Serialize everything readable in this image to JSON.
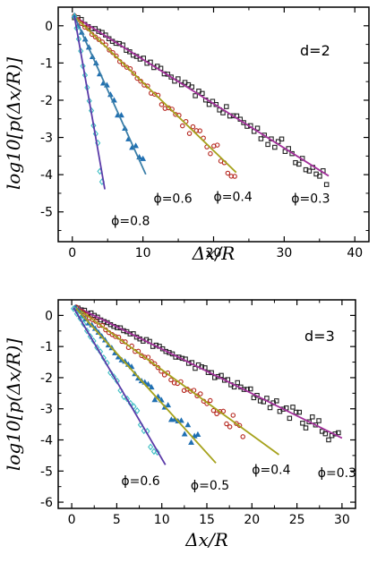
{
  "colors": {
    "black": "#222222",
    "red": "#b5261e",
    "blue": "#1f6fb2",
    "cyan": "#3fbfc4",
    "magenta": "#a2309b",
    "olive": "#a6a21c",
    "steel": "#3a7ea8",
    "purple": "#5a3aa8"
  },
  "chart_data": [
    {
      "type": "scatter",
      "panel_label": "d=2",
      "xlabel": "Δx/R",
      "ylabel": "log10[p(Δx/R)]",
      "xlim": [
        -2,
        42
      ],
      "ylim": [
        -5.8,
        0.5
      ],
      "xticks": [
        0,
        10,
        20,
        30,
        40
      ],
      "yticks": [
        0,
        -1,
        -2,
        -3,
        -4,
        -5
      ],
      "series": [
        {
          "name": "ϕ=0.3",
          "marker": "square",
          "color": "black",
          "fit_color": "magenta",
          "x0": 0.3,
          "slope": -0.119,
          "xmax": 36,
          "fit_end": 36.3
        },
        {
          "name": "ϕ=0.4",
          "marker": "circle",
          "color": "red",
          "fit_color": "olive",
          "x0": 0.3,
          "slope": -0.183,
          "xmax": 23,
          "fit_end": 23.2
        },
        {
          "name": "ϕ=0.6",
          "marker": "triangle",
          "color": "blue",
          "fit_color": "steel",
          "x0": 0.3,
          "slope": -0.42,
          "xmax": 10,
          "fit_end": 10.4
        },
        {
          "name": "ϕ=0.8",
          "marker": "diamond",
          "color": "cyan",
          "fit_color": "purple",
          "x0": 0.3,
          "slope": -1.08,
          "xmax": 4.2,
          "fit_end": 4.6
        }
      ],
      "annotations": [
        {
          "text": "ϕ=0.3",
          "x": 31,
          "y": -4.75
        },
        {
          "text": "ϕ=0.4",
          "x": 20,
          "y": -4.7
        },
        {
          "text": "ϕ=0.6",
          "x": 11.5,
          "y": -4.75
        },
        {
          "text": "ϕ=0.8",
          "x": 5.5,
          "y": -5.35
        }
      ]
    },
    {
      "type": "scatter",
      "panel_label": "d=3",
      "xlabel": "Δx/R",
      "ylabel": "log10[p(Δx/R)]",
      "xlim": [
        -1.5,
        31.5
      ],
      "ylim": [
        -6.2,
        0.5
      ],
      "xticks": [
        0,
        5,
        10,
        15,
        20,
        25,
        30
      ],
      "yticks": [
        0,
        -1,
        -2,
        -3,
        -4,
        -5,
        -6
      ],
      "series": [
        {
          "name": "ϕ=0.3",
          "marker": "square",
          "color": "black",
          "fit_color": "magenta",
          "x0": 0.7,
          "slope": -0.143,
          "xmax": 29.6,
          "fit_end": 30
        },
        {
          "name": "ϕ=0.4",
          "marker": "circle",
          "color": "red",
          "fit_color": "olive",
          "x0": 0.5,
          "slope": -0.21,
          "xmax": 19,
          "fit_end": 23
        },
        {
          "name": "ϕ=0.5",
          "marker": "triangle",
          "color": "blue",
          "fit_color": "olive",
          "x0": 0.4,
          "slope": -0.32,
          "xmax": 14,
          "fit_end": 16
        },
        {
          "name": "ϕ=0.6",
          "marker": "diamond",
          "color": "cyan",
          "fit_color": "purple",
          "x0": 0.2,
          "slope": -0.495,
          "xmax": 9.5,
          "fit_end": 10.4
        }
      ],
      "annotations": [
        {
          "text": "ϕ=0.3",
          "x": 27.3,
          "y": -5.2
        },
        {
          "text": "ϕ=0.4",
          "x": 20,
          "y": -5.1
        },
        {
          "text": "ϕ=0.5",
          "x": 13.2,
          "y": -5.6
        },
        {
          "text": "ϕ=0.6",
          "x": 5.5,
          "y": -5.45
        }
      ]
    }
  ]
}
